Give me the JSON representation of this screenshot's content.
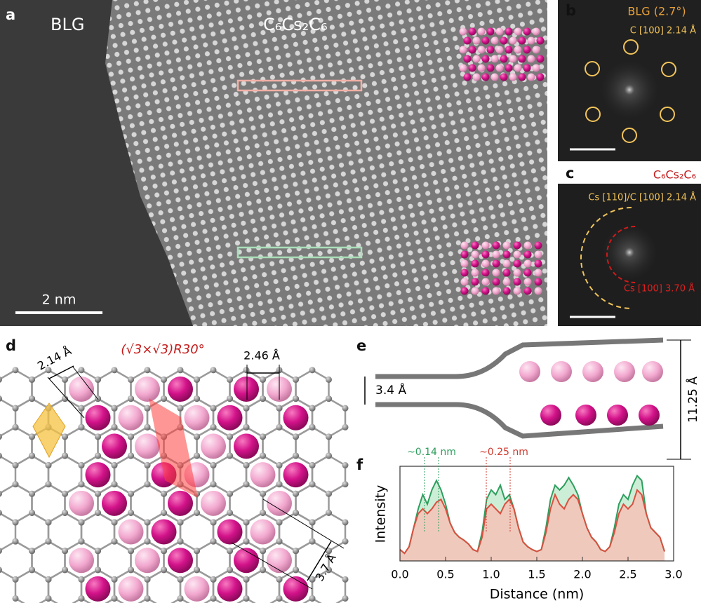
{
  "panels": {
    "a": {
      "label": "a",
      "left_title": "BLG",
      "right_title": "C₆Cs₂C₆",
      "scale_bar": "2 nm"
    },
    "b": {
      "label": "b",
      "title": "BLG (2.7°)",
      "annotation": "C [100] 2.14 Å"
    },
    "c": {
      "label": "c",
      "title": "C₆Cs₂C₆",
      "annotation_1": "Cs [110]/C [100] 2.14 Å",
      "annotation_2": "Cs [100] 3.70 Å"
    },
    "d": {
      "label": "d",
      "title": "(√3×√3)R30°",
      "distance_1": "2.14 Å",
      "distance_2": "2.46 Å",
      "distance_3": "3.7 Å"
    },
    "e": {
      "label": "e",
      "interlayer_1": "3.4 Å",
      "interlayer_2": "11.25 Å"
    },
    "f": {
      "label": "f"
    }
  },
  "chart_data": {
    "type": "area",
    "xlabel": "Distance (nm)",
    "ylabel": "Intensity",
    "annotations": [
      {
        "text": "~0.14 nm",
        "color": "#2e9e5e"
      },
      {
        "text": "~0.25 nm",
        "color": "#d03a2e"
      }
    ],
    "xlim": [
      0,
      3
    ],
    "ylim": [
      0,
      1
    ],
    "xticks": [
      {
        "value": 0,
        "label": "0.0"
      },
      {
        "value": 0.5,
        "label": "0.5"
      },
      {
        "value": 1,
        "label": "1.0"
      },
      {
        "value": 1.5,
        "label": "1.5"
      },
      {
        "value": 2,
        "label": "2.0"
      },
      {
        "value": 2.5,
        "label": "2.5"
      },
      {
        "value": 3,
        "label": "3.0"
      }
    ],
    "x": [
      0.0,
      0.05,
      0.1,
      0.15,
      0.2,
      0.25,
      0.3,
      0.35,
      0.4,
      0.45,
      0.5,
      0.55,
      0.6,
      0.65,
      0.7,
      0.75,
      0.8,
      0.85,
      0.9,
      0.95,
      1.0,
      1.05,
      1.1,
      1.15,
      1.2,
      1.25,
      1.3,
      1.35,
      1.4,
      1.45,
      1.5,
      1.55,
      1.6,
      1.65,
      1.7,
      1.75,
      1.8,
      1.85,
      1.9,
      1.95,
      2.0,
      2.05,
      2.1,
      2.15,
      2.2,
      2.25,
      2.3,
      2.35,
      2.4,
      2.45,
      2.5,
      2.55,
      2.6,
      2.65,
      2.7,
      2.75,
      2.8,
      2.85,
      2.9
    ],
    "series": [
      {
        "color": "#2e9e5e",
        "fill": "#cdeed6",
        "values": [
          0.12,
          0.08,
          0.15,
          0.35,
          0.55,
          0.7,
          0.6,
          0.75,
          0.85,
          0.75,
          0.6,
          0.4,
          0.3,
          0.25,
          0.22,
          0.18,
          0.12,
          0.1,
          0.3,
          0.65,
          0.75,
          0.7,
          0.8,
          0.65,
          0.7,
          0.55,
          0.35,
          0.2,
          0.15,
          0.12,
          0.1,
          0.12,
          0.35,
          0.65,
          0.8,
          0.75,
          0.8,
          0.88,
          0.8,
          0.7,
          0.5,
          0.35,
          0.25,
          0.2,
          0.12,
          0.1,
          0.15,
          0.35,
          0.6,
          0.7,
          0.65,
          0.8,
          0.9,
          0.85,
          0.5,
          0.35,
          0.3,
          0.25,
          0.1
        ]
      },
      {
        "color": "#d9503f",
        "fill": "#f6c2b8",
        "values": [
          0.12,
          0.08,
          0.15,
          0.35,
          0.5,
          0.55,
          0.5,
          0.55,
          0.62,
          0.65,
          0.55,
          0.4,
          0.3,
          0.25,
          0.22,
          0.18,
          0.12,
          0.1,
          0.25,
          0.55,
          0.6,
          0.55,
          0.5,
          0.6,
          0.65,
          0.55,
          0.35,
          0.2,
          0.15,
          0.12,
          0.1,
          0.12,
          0.3,
          0.55,
          0.7,
          0.6,
          0.55,
          0.65,
          0.7,
          0.65,
          0.5,
          0.35,
          0.25,
          0.2,
          0.12,
          0.1,
          0.15,
          0.3,
          0.5,
          0.6,
          0.55,
          0.6,
          0.75,
          0.7,
          0.5,
          0.35,
          0.3,
          0.25,
          0.1
        ]
      }
    ]
  }
}
